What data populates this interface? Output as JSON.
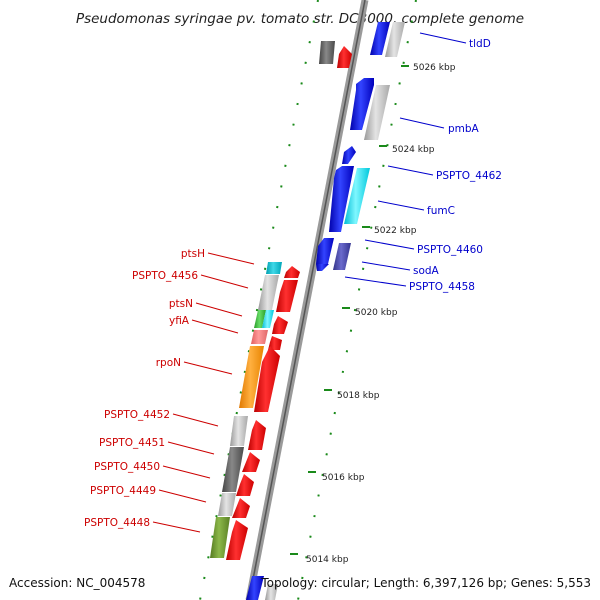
{
  "title": "Pseudomonas syringae pv. tomato str. DC3000, complete genome",
  "footer": {
    "accession": "Accession: NC_004578",
    "summary": "Topology: circular; Length: 6,397,126 bp; Genes: 5,553"
  },
  "kbp_ticks": [
    {
      "label": "5026 kbp"
    },
    {
      "label": "5024 kbp"
    },
    {
      "label": "5022 kbp"
    },
    {
      "label": "5020 kbp"
    },
    {
      "label": "5018 kbp"
    },
    {
      "label": "5016 kbp"
    },
    {
      "label": "5014 kbp"
    }
  ],
  "genes_right": [
    {
      "label": "tldD",
      "color": "#0000cc"
    },
    {
      "label": "pmbA",
      "color": "#0000cc"
    },
    {
      "label": "PSPTO_4462",
      "color": "#0000cc"
    },
    {
      "label": "fumC",
      "color": "#0000cc"
    },
    {
      "label": "PSPTO_4460",
      "color": "#0000cc"
    },
    {
      "label": "sodA",
      "color": "#0000cc"
    },
    {
      "label": "PSPTO_4458",
      "color": "#0000cc"
    }
  ],
  "genes_left": [
    {
      "label": "ptsH",
      "color": "#cc0000"
    },
    {
      "label": "PSPTO_4456",
      "color": "#cc0000"
    },
    {
      "label": "ptsN",
      "color": "#cc0000"
    },
    {
      "label": "yfiA",
      "color": "#cc0000"
    },
    {
      "label": "rpoN",
      "color": "#cc0000"
    },
    {
      "label": "PSPTO_4452",
      "color": "#cc0000"
    },
    {
      "label": "PSPTO_4451",
      "color": "#cc0000"
    },
    {
      "label": "PSPTO_4450",
      "color": "#cc0000"
    },
    {
      "label": "PSPTO_4449",
      "color": "#cc0000"
    },
    {
      "label": "PSPTO_4448",
      "color": "#cc0000"
    }
  ]
}
